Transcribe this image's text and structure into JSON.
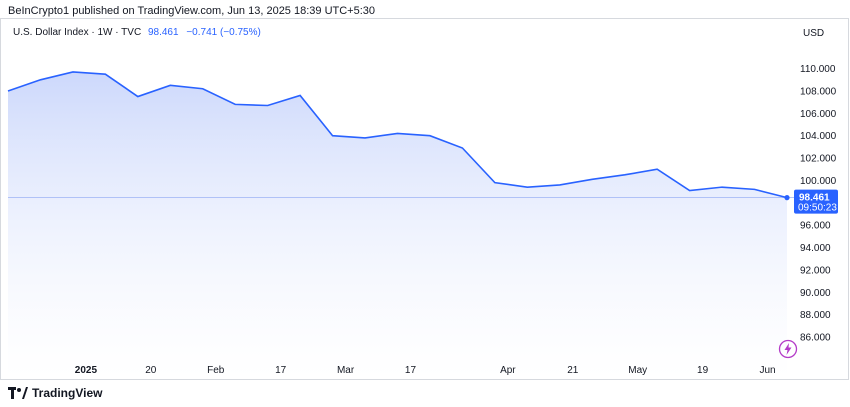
{
  "attribution": "BeInCrypto1 published on TradingView.com, Jun 13, 2025 18:39 UTC+5:30",
  "legend": {
    "name": "U.S. Dollar Index · 1W · TVC",
    "last": "98.461",
    "change": "−0.741 (−0.75%)"
  },
  "currency": "USD",
  "price_tag": {
    "value": "98.461",
    "countdown": "09:50:23"
  },
  "brand": {
    "name": "TradingView",
    "logo_icon": "tradingview-logo-icon"
  },
  "footer_icon": "lightning-icon",
  "colors": {
    "line": "#2962ff",
    "fill_top": "#c7d4fb",
    "fill_bottom": "#ffffff",
    "tag_bg": "#2962ff"
  },
  "chart_data": {
    "type": "area",
    "series": [
      {
        "values": [
          108.0,
          109.0,
          109.7,
          109.5,
          107.5,
          108.5,
          108.2,
          106.8,
          106.7,
          107.6,
          104.0,
          103.8,
          104.2,
          104.0,
          102.9,
          99.8,
          99.4,
          99.6,
          100.1,
          100.5,
          101.0,
          99.1,
          99.4,
          99.2,
          98.461
        ]
      }
    ],
    "x_tick_labels": [
      "2025",
      "20",
      "Feb",
      "17",
      "Mar",
      "17",
      "Apr",
      "21",
      "May",
      "19",
      "Jun"
    ],
    "y_tick_labels": [
      "110.000",
      "108.000",
      "106.000",
      "104.000",
      "102.000",
      "100.000",
      "96.000",
      "94.000",
      "92.000",
      "90.000",
      "88.000",
      "86.000"
    ],
    "y_ticks": [
      110,
      108,
      106,
      104,
      102,
      100,
      96,
      94,
      92,
      90,
      88,
      86
    ],
    "x_tick_index": [
      2.4,
      4.4,
      6.4,
      8.4,
      10.4,
      12.4,
      15.4,
      17.4,
      19.4,
      21.4,
      23.4
    ],
    "ylim": [
      84.3,
      112.2
    ],
    "grid": false,
    "last_value": 98.461
  }
}
